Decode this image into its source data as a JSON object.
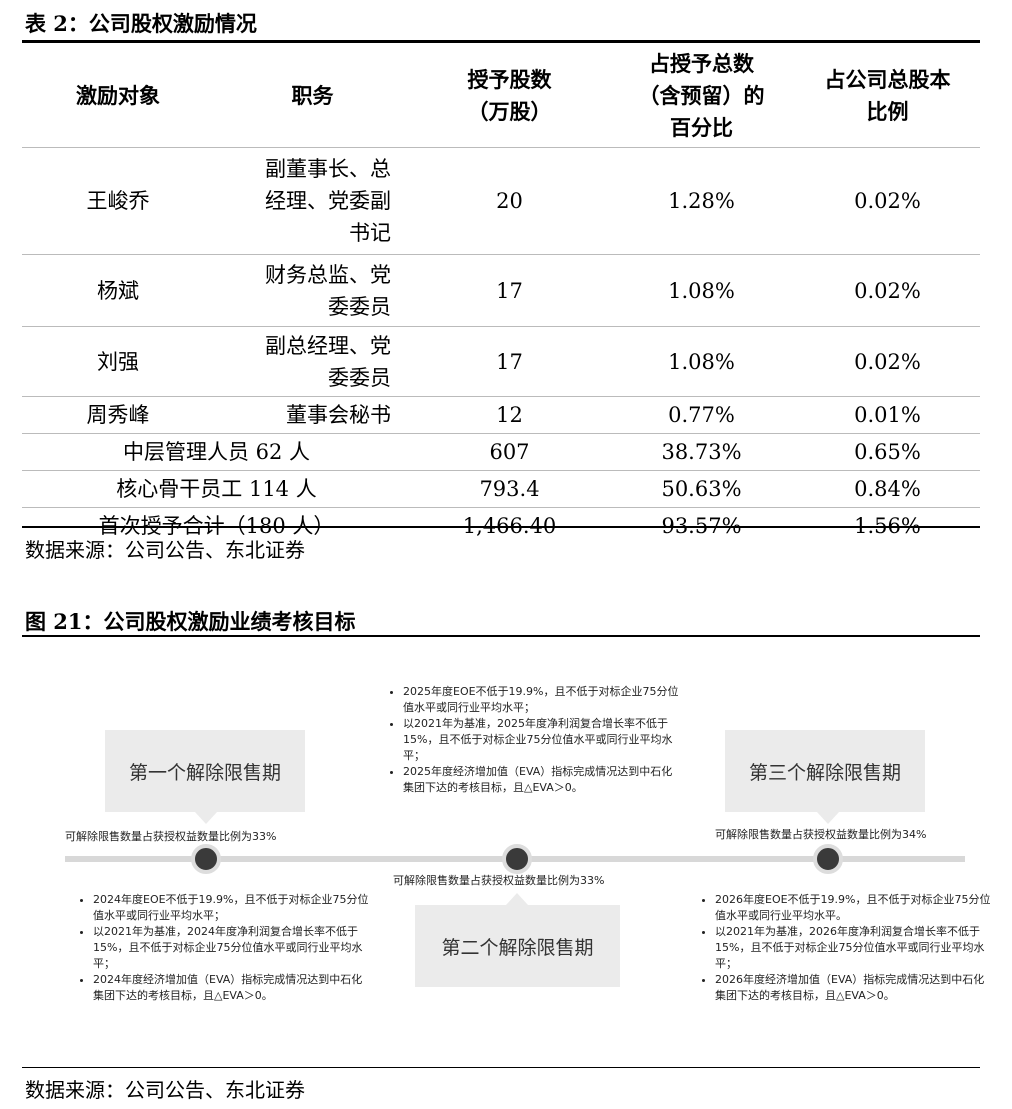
{
  "table": {
    "title": "表 2：公司股权激励情况",
    "headers": [
      "激励对象",
      "职务",
      "授予股数\n（万股）",
      "占授予总数\n（含预留）的\n百分比",
      "占公司总股本\n比例"
    ],
    "rows": [
      [
        "王峻乔",
        "副董事长、总\n经理、党委副\n书记",
        "20",
        "1.28%",
        "0.02%"
      ],
      [
        "杨斌",
        "财务总监、党\n委委员",
        "17",
        "1.08%",
        "0.02%"
      ],
      [
        "刘强",
        "副总经理、党\n委委员",
        "17",
        "1.08%",
        "0.02%"
      ],
      [
        "周秀峰",
        "董事会秘书",
        "12",
        "0.77%",
        "0.01%"
      ]
    ],
    "merged_rows": [
      [
        "中层管理人员 62 人",
        "607",
        "38.73%",
        "0.65%"
      ],
      [
        "核心骨干员工 114 人",
        "793.4",
        "50.63%",
        "0.84%"
      ],
      [
        "首次授予合计（180 人）",
        "1,466.40",
        "93.57%",
        "1.56%"
      ]
    ],
    "source": "数据来源：公司公告、东北证券"
  },
  "figure": {
    "title": "图 21：公司股权激励业绩考核目标",
    "phases": [
      {
        "label": "第一个解除限售期",
        "ratio": "可解除限售数量占获授权益数量比例为33%",
        "items": [
          "2024年度EOE不低于19.9%，且不低于对标企业75分位值水平或同行业平均水平；",
          "以2021年为基准，2024年度净利润复合增长率不低于15%，且不低于对标企业75分位值水平或同行业平均水平；",
          "2024年度经济增加值（EVA）指标完成情况达到中石化集团下达的考核目标，且△EVA＞0。"
        ]
      },
      {
        "label": "第二个解除限售期",
        "ratio": "可解除限售数量占获授权益数量比例为33%",
        "items": [
          "2025年度EOE不低于19.9%，且不低于对标企业75分位值水平或同行业平均水平；",
          "以2021年为基准，2025年度净利润复合增长率不低于15%，且不低于对标企业75分位值水平或同行业平均水平；",
          "2025年度经济增加值（EVA）指标完成情况达到中石化集团下达的考核目标，且△EVA＞0。"
        ]
      },
      {
        "label": "第三个解除限售期",
        "ratio": "可解除限售数量占获授权益数量比例为34%",
        "items": [
          "2026年度EOE不低于19.9%，且不低于对标企业75分位值水平或同行业平均水平。",
          "以2021年为基准，2026年度净利润复合增长率不低于15%，且不低于对标企业75分位值水平或同行业平均水平；",
          "2026年度经济增加值（EVA）指标完成情况达到中石化集团下达的考核目标，且△EVA＞0。"
        ]
      }
    ],
    "source": "数据来源：公司公告、东北证券"
  }
}
